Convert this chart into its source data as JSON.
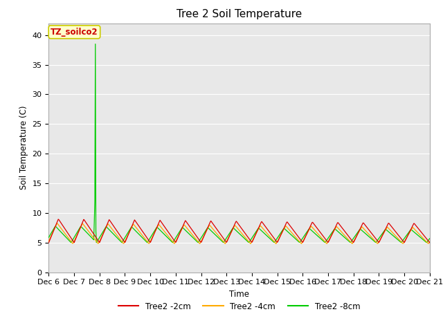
{
  "title": "Tree 2 Soil Temperature",
  "ylabel": "Soil Temperature (C)",
  "xlabel": "Time",
  "annotation_label": "TZ_soilco2",
  "annotation_color_text": "#cc0000",
  "annotation_bg_color": "#ffffcc",
  "annotation_edge_color": "#cccc00",
  "ylim": [
    0,
    42
  ],
  "yticks": [
    0,
    5,
    10,
    15,
    20,
    25,
    30,
    35,
    40
  ],
  "x_labels": [
    "Dec 6",
    "Dec 7",
    "Dec 8",
    "Dec 9",
    "Dec 10",
    "Dec 11",
    "Dec 12",
    "Dec 13",
    "Dec 14",
    "Dec 15",
    "Dec 16",
    "Dec 17",
    "Dec 18",
    "Dec 19",
    "Dec 20",
    "Dec 21"
  ],
  "bg_color": "#e8e8e8",
  "line_colors": [
    "#dd0000",
    "#ffaa00",
    "#00cc00"
  ],
  "legend_labels": [
    "Tree2 -2cm",
    "Tree2 -4cm",
    "Tree2 -8cm"
  ],
  "grid_color": "#ffffff",
  "title_fontsize": 11,
  "label_fontsize": 8.5,
  "tick_fontsize": 8,
  "spike_value": 38.5,
  "spike_day": 1.85,
  "n_days": 15,
  "pts_per_day": 48
}
